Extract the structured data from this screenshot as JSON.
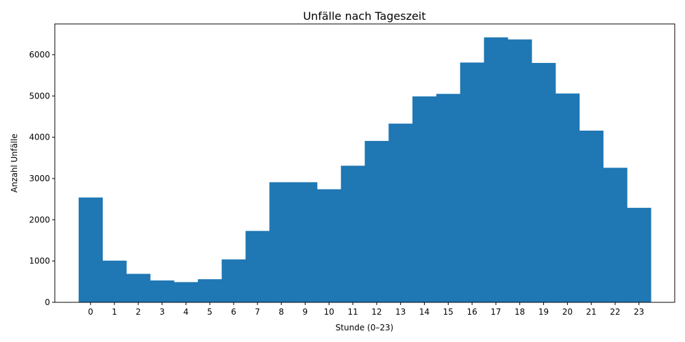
{
  "chart_data": {
    "type": "bar",
    "title": "Unfälle nach Tageszeit",
    "xlabel": "Stunde (0–23)",
    "ylabel": "Anzahl Unfälle",
    "categories": [
      "0",
      "1",
      "2",
      "3",
      "4",
      "5",
      "6",
      "7",
      "8",
      "9",
      "10",
      "11",
      "12",
      "13",
      "14",
      "15",
      "16",
      "17",
      "18",
      "19",
      "20",
      "21",
      "22",
      "23"
    ],
    "values": [
      2540,
      1010,
      690,
      530,
      490,
      560,
      1040,
      1730,
      2910,
      2910,
      2740,
      3310,
      3910,
      4330,
      4990,
      5050,
      5810,
      6420,
      6370,
      5800,
      5060,
      4160,
      3260,
      2290
    ],
    "x_range": [
      -1.5,
      24.5
    ],
    "ylim": [
      0,
      6745
    ],
    "y_ticks": [
      0,
      1000,
      2000,
      3000,
      4000,
      5000,
      6000
    ],
    "bar_color": "#1f77b4",
    "grid": false,
    "legend": "none"
  }
}
